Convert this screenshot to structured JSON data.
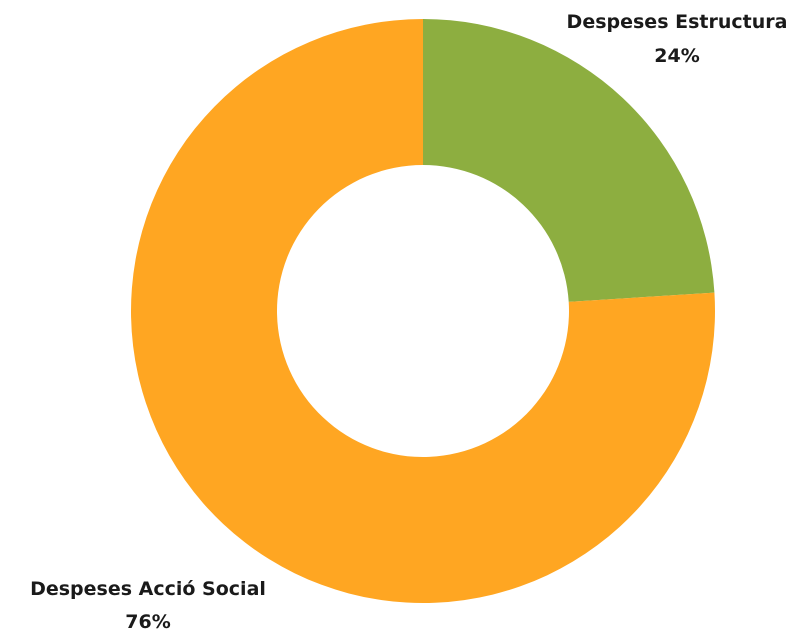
{
  "chart_data": {
    "type": "pie",
    "style": "donut",
    "title": "",
    "slices": [
      {
        "label": "Despeses Estructura",
        "value": 24,
        "value_label": "24%",
        "color": "#8DAE40"
      },
      {
        "label": "Despeses Acció Social",
        "value": 76,
        "value_label": "76%",
        "color": "#FFA622"
      }
    ],
    "legend": "none"
  }
}
